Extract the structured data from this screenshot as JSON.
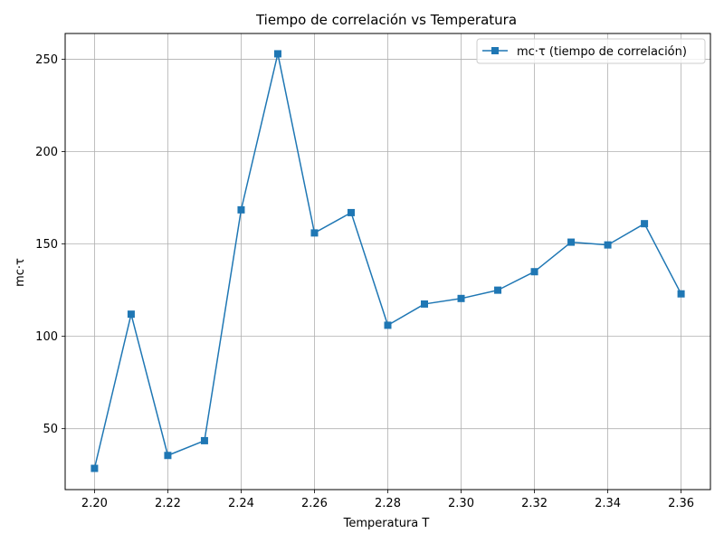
{
  "chart_data": {
    "type": "line",
    "title": "Tiempo de correlación vs Temperatura",
    "xlabel": "Temperatura T",
    "ylabel": "mc·τ",
    "xlim": [
      2.192,
      2.368
    ],
    "ylim": [
      17,
      264
    ],
    "xticks": [
      2.2,
      2.22,
      2.24,
      2.26,
      2.28,
      2.3,
      2.32,
      2.34,
      2.36
    ],
    "xtick_labels": [
      "2.20",
      "2.22",
      "2.24",
      "2.26",
      "2.28",
      "2.30",
      "2.32",
      "2.34",
      "2.36"
    ],
    "yticks": [
      50,
      100,
      150,
      200,
      250
    ],
    "ytick_labels": [
      "50",
      "100",
      "150",
      "200",
      "250"
    ],
    "grid": true,
    "legend_position": "top-right",
    "series": [
      {
        "name": "mc·τ (tiempo de correlación)",
        "color": "#1f77b4",
        "marker": "square",
        "x": [
          2.2,
          2.21,
          2.22,
          2.23,
          2.24,
          2.25,
          2.26,
          2.27,
          2.28,
          2.29,
          2.3,
          2.31,
          2.32,
          2.33,
          2.34,
          2.35,
          2.36
        ],
        "y": [
          28.5,
          112,
          35.5,
          43.5,
          168.5,
          253,
          156,
          167,
          106,
          117.5,
          120.5,
          125,
          135,
          151,
          149.5,
          161,
          123
        ]
      }
    ]
  }
}
